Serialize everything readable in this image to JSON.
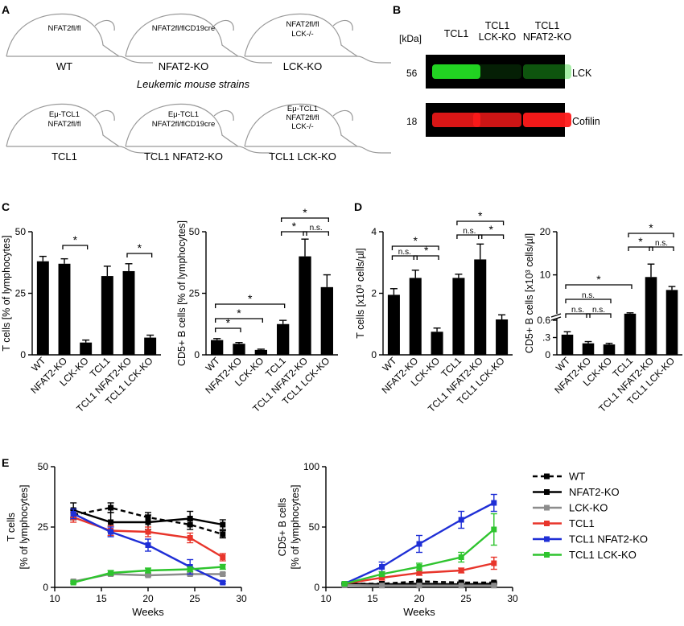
{
  "panels": {
    "A": {
      "letter": "A",
      "strains_caption": "Leukemic mouse strains",
      "mice": [
        {
          "inner": [
            "NFAT2fl/fl"
          ],
          "label": "WT"
        },
        {
          "inner": [
            "NFAT2fl/flCD19cre"
          ],
          "label": "NFAT2-KO"
        },
        {
          "inner": [
            "NFAT2fl/fl",
            "LCK-/-"
          ],
          "label": "LCK-KO"
        },
        {
          "inner": [
            "Eμ-TCL1",
            "NFAT2fl/fl"
          ],
          "label": "TCL1"
        },
        {
          "inner": [
            "Eμ-TCL1",
            "NFAT2fl/flCD19cre"
          ],
          "label": "TCL1 NFAT2-KO"
        },
        {
          "inner": [
            "Eμ-TCL1",
            "NFAT2fl/fl",
            "LCK-/-"
          ],
          "label": "TCL1 LCK-KO"
        }
      ]
    },
    "B": {
      "letter": "B",
      "kda_label": "[kDa]",
      "lanes": [
        [
          "TCL1"
        ],
        [
          "TCL1",
          "LCK-KO"
        ],
        [
          "TCL1",
          "NFAT2-KO"
        ]
      ],
      "blots": [
        {
          "marker": "56",
          "protein": "LCK",
          "color": "#22d322",
          "intensity": [
            1.0,
            0.15,
            0.4
          ]
        },
        {
          "marker": "18",
          "protein": "Cofilin",
          "color": "#ff1a1a",
          "intensity": [
            0.85,
            0.8,
            0.95
          ]
        }
      ]
    },
    "C": {
      "letter": "C"
    },
    "D": {
      "letter": "D"
    },
    "E": {
      "letter": "E"
    }
  },
  "chart_data": [
    {
      "id": "C1",
      "type": "bar",
      "ylabel": "T cells [% of lymphocytes]",
      "categories": [
        "WT",
        "NFAT2-KO",
        "LCK-KO",
        "TCL1",
        "TCL1 NFAT2-KO",
        "TCL1 LCK-KO"
      ],
      "values": [
        38,
        37,
        5,
        32,
        34,
        7
      ],
      "errors": [
        2,
        2,
        1,
        4,
        3,
        1
      ],
      "ylim": [
        0,
        50
      ],
      "yticks": [
        0,
        25,
        50
      ],
      "significance": [
        {
          "from": 1,
          "to": 2,
          "label": "*"
        },
        {
          "from": 4,
          "to": 5,
          "label": "*"
        }
      ]
    },
    {
      "id": "C2",
      "type": "bar",
      "ylabel": "CD5+ B cells [% of lymphocytes]",
      "categories": [
        "WT",
        "NFAT2-KO",
        "LCK-KO",
        "TCL1",
        "TCL1 NFAT2-KO",
        "TCL1 LCK-KO"
      ],
      "values": [
        6,
        4.5,
        2,
        12.5,
        40,
        27.5
      ],
      "errors": [
        0.6,
        0.5,
        0.3,
        1.5,
        7,
        5
      ],
      "ylim": [
        0,
        50
      ],
      "yticks": [
        0,
        25,
        50
      ],
      "significance": [
        {
          "from": 0,
          "to": 1,
          "label": "*"
        },
        {
          "from": 0,
          "to": 2,
          "label": "*"
        },
        {
          "from": 0,
          "to": 3,
          "label": "*"
        },
        {
          "from": 3,
          "to": 4,
          "label": "*"
        },
        {
          "from": 4,
          "to": 5,
          "label": "n.s."
        },
        {
          "from": 3,
          "to": 5,
          "label": "*"
        }
      ]
    },
    {
      "id": "D1",
      "type": "bar",
      "ylabel": "T cells [x10³ cells/µl]",
      "categories": [
        "WT",
        "NFAT2-KO",
        "LCK-KO",
        "TCL1",
        "TCL1 NFAT2-KO",
        "TCL1 LCK-KO"
      ],
      "values": [
        1.95,
        2.5,
        0.75,
        2.5,
        3.1,
        1.15
      ],
      "errors": [
        0.2,
        0.25,
        0.12,
        0.12,
        0.5,
        0.15
      ],
      "ylim": [
        0,
        4
      ],
      "yticks": [
        0,
        2,
        4
      ],
      "significance": [
        {
          "from": 0,
          "to": 1,
          "label": "n.s."
        },
        {
          "from": 1,
          "to": 2,
          "label": "*"
        },
        {
          "from": 0,
          "to": 2,
          "label": "*"
        },
        {
          "from": 3,
          "to": 4,
          "label": "n.s."
        },
        {
          "from": 4,
          "to": 5,
          "label": "*"
        },
        {
          "from": 3,
          "to": 5,
          "label": "*"
        }
      ]
    },
    {
      "id": "D2",
      "type": "bar",
      "ylabel": "CD5+ B cells [x10³ cells/µl]",
      "categories": [
        "WT",
        "NFAT2-KO",
        "LCK-KO",
        "TCL1",
        "TCL1 NFAT2-KO",
        "TCL1 LCK-KO"
      ],
      "values": [
        0.35,
        0.2,
        0.18,
        1.0,
        9.5,
        6.5
      ],
      "errors": [
        0.05,
        0.03,
        0.02,
        0.2,
        3,
        0.8
      ],
      "broken_axis": {
        "lower": [
          0,
          0.6
        ],
        "upper": [
          0.6,
          20
        ],
        "lower_ticks": [
          "0",
          ".3",
          "0.6"
        ],
        "upper_ticks": [
          "10",
          "20"
        ]
      },
      "significance": [
        {
          "from": 0,
          "to": 1,
          "label": "n.s."
        },
        {
          "from": 1,
          "to": 2,
          "label": "n.s."
        },
        {
          "from": 0,
          "to": 2,
          "label": "n.s."
        },
        {
          "from": 0,
          "to": 3,
          "label": "*"
        },
        {
          "from": 3,
          "to": 4,
          "label": "*"
        },
        {
          "from": 4,
          "to": 5,
          "label": "n.s."
        },
        {
          "from": 3,
          "to": 5,
          "label": "*"
        }
      ]
    },
    {
      "id": "E1",
      "type": "line",
      "xlabel": "Weeks",
      "ylabel": [
        "T cells",
        "[% of lymphocytes]"
      ],
      "x": [
        12,
        16,
        20,
        24.5,
        28
      ],
      "xlim": [
        10,
        30
      ],
      "ylim": [
        0,
        50
      ],
      "xticks": [
        10,
        15,
        20,
        25,
        30
      ],
      "yticks": [
        0,
        25,
        50
      ],
      "series": [
        {
          "name": "WT",
          "color": "#000000",
          "dashed": true,
          "values": [
            30,
            33,
            29,
            26,
            22
          ],
          "errors": [
            2,
            2,
            2,
            2,
            1.5
          ]
        },
        {
          "name": "NFAT2-KO",
          "color": "#000000",
          "dashed": false,
          "values": [
            32,
            27,
            27,
            28.5,
            26
          ],
          "errors": [
            3,
            4,
            3,
            3,
            2
          ]
        },
        {
          "name": "LCK-KO",
          "color": "#8c8c8c",
          "dashed": false,
          "values": [
            2.5,
            5.5,
            5,
            5.5,
            5.5
          ],
          "errors": [
            0.5,
            0.5,
            0.5,
            0.5,
            0.5
          ]
        },
        {
          "name": "TCL1",
          "color": "#e8352b",
          "dashed": false,
          "values": [
            29,
            23.5,
            23,
            20.5,
            12.5
          ],
          "errors": [
            2,
            2,
            2,
            2,
            1.5
          ]
        },
        {
          "name": "TCL1 NFAT2-KO",
          "color": "#1f2fd6",
          "dashed": false,
          "values": [
            30.5,
            23,
            17.5,
            8.5,
            2
          ],
          "errors": [
            2,
            2,
            2.5,
            3,
            0.5
          ]
        },
        {
          "name": "TCL1 LCK-KO",
          "color": "#2ec42e",
          "dashed": false,
          "values": [
            2,
            6,
            7,
            7.5,
            8.5
          ],
          "errors": [
            0.5,
            1,
            1,
            1,
            1
          ]
        }
      ]
    },
    {
      "id": "E2",
      "type": "line",
      "xlabel": "Weeks",
      "ylabel": [
        "CD5+ B cells",
        "[% of lymphocytes]"
      ],
      "x": [
        12,
        16,
        20,
        24.5,
        28
      ],
      "xlim": [
        10,
        30
      ],
      "ylim": [
        0,
        100
      ],
      "xticks": [
        10,
        15,
        20,
        25,
        30
      ],
      "yticks": [
        0,
        50,
        100
      ],
      "series": [
        {
          "name": "WT",
          "color": "#000000",
          "dashed": true,
          "values": [
            3,
            3,
            5,
            4,
            4
          ],
          "errors": [
            0.5,
            0.5,
            0.5,
            0.5,
            0.5
          ]
        },
        {
          "name": "NFAT2-KO",
          "color": "#000000",
          "dashed": false,
          "values": [
            3,
            2.5,
            3,
            2.5,
            3
          ],
          "errors": [
            0.5,
            0.5,
            0.5,
            0.5,
            0.5
          ]
        },
        {
          "name": "LCK-KO",
          "color": "#8c8c8c",
          "dashed": false,
          "values": [
            2,
            1.5,
            1.5,
            1.5,
            1.5
          ],
          "errors": [
            0.3,
            0.3,
            0.3,
            0.3,
            0.3
          ]
        },
        {
          "name": "TCL1",
          "color": "#e8352b",
          "dashed": false,
          "values": [
            3,
            8,
            12,
            14,
            20
          ],
          "errors": [
            1,
            2,
            2,
            2,
            5
          ]
        },
        {
          "name": "TCL1 NFAT2-KO",
          "color": "#1f2fd6",
          "dashed": false,
          "values": [
            3,
            17,
            36,
            56,
            70
          ],
          "errors": [
            1,
            4,
            7,
            7,
            7
          ]
        },
        {
          "name": "TCL1 LCK-KO",
          "color": "#2ec42e",
          "dashed": false,
          "values": [
            3,
            11,
            17,
            25,
            48
          ],
          "errors": [
            1,
            2,
            3,
            4,
            13
          ]
        }
      ]
    }
  ]
}
